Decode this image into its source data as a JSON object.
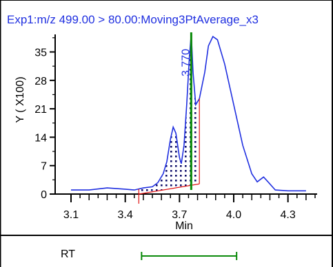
{
  "chart_data": {
    "type": "line",
    "title": "Exp1:m/z 499.00 > 80.00:Moving3PtAverage_x3",
    "xlabel": "Min",
    "ylabel": "Y ( X100)",
    "xlim": [
      3.1,
      4.45
    ],
    "ylim": [
      0,
      40
    ],
    "x_ticks": [
      "3.1",
      "3.4",
      "3.7",
      "4.0",
      "4.3"
    ],
    "y_ticks": [
      "0",
      "7",
      "14",
      "21",
      "28",
      "35"
    ],
    "grid": false,
    "series": [
      {
        "color": "#1f2fe0",
        "points": [
          [
            3.1,
            1.0
          ],
          [
            3.2,
            1.0
          ],
          [
            3.3,
            1.5
          ],
          [
            3.4,
            1.2
          ],
          [
            3.45,
            1.0
          ],
          [
            3.5,
            1.5
          ],
          [
            3.55,
            1.8
          ],
          [
            3.58,
            2.8
          ],
          [
            3.61,
            5.0
          ],
          [
            3.63,
            8.0
          ],
          [
            3.65,
            13.5
          ],
          [
            3.665,
            16.5
          ],
          [
            3.68,
            15.0
          ],
          [
            3.7,
            9.0
          ],
          [
            3.71,
            7.5
          ],
          [
            3.725,
            12.0
          ],
          [
            3.74,
            22.0
          ],
          [
            3.755,
            34.0
          ],
          [
            3.765,
            39.5
          ],
          [
            3.775,
            30.0
          ],
          [
            3.79,
            22.0
          ],
          [
            3.81,
            23.5
          ],
          [
            3.84,
            30.0
          ],
          [
            3.86,
            36.5
          ],
          [
            3.885,
            38.8
          ],
          [
            3.91,
            38.0
          ],
          [
            3.95,
            32.0
          ],
          [
            4.0,
            22.0
          ],
          [
            4.05,
            12.0
          ],
          [
            4.1,
            5.0
          ],
          [
            4.13,
            3.0
          ],
          [
            4.165,
            4.2
          ],
          [
            4.19,
            3.0
          ],
          [
            4.23,
            1.0
          ],
          [
            4.3,
            0.8
          ],
          [
            4.4,
            0.8
          ]
        ]
      }
    ],
    "integration": {
      "start": 3.475,
      "apex": 3.765,
      "end": 3.81,
      "baseline_start": 0.0,
      "baseline_end": 2.5,
      "apex_label": "3.770",
      "baseline_color": "#e01010",
      "marker_color": "#0a8a0a",
      "fill_pattern_color": "#10106a"
    }
  },
  "rt_panel": {
    "label": "RT",
    "range": [
      3.475,
      3.81
    ],
    "color": "#0a8a0a"
  }
}
